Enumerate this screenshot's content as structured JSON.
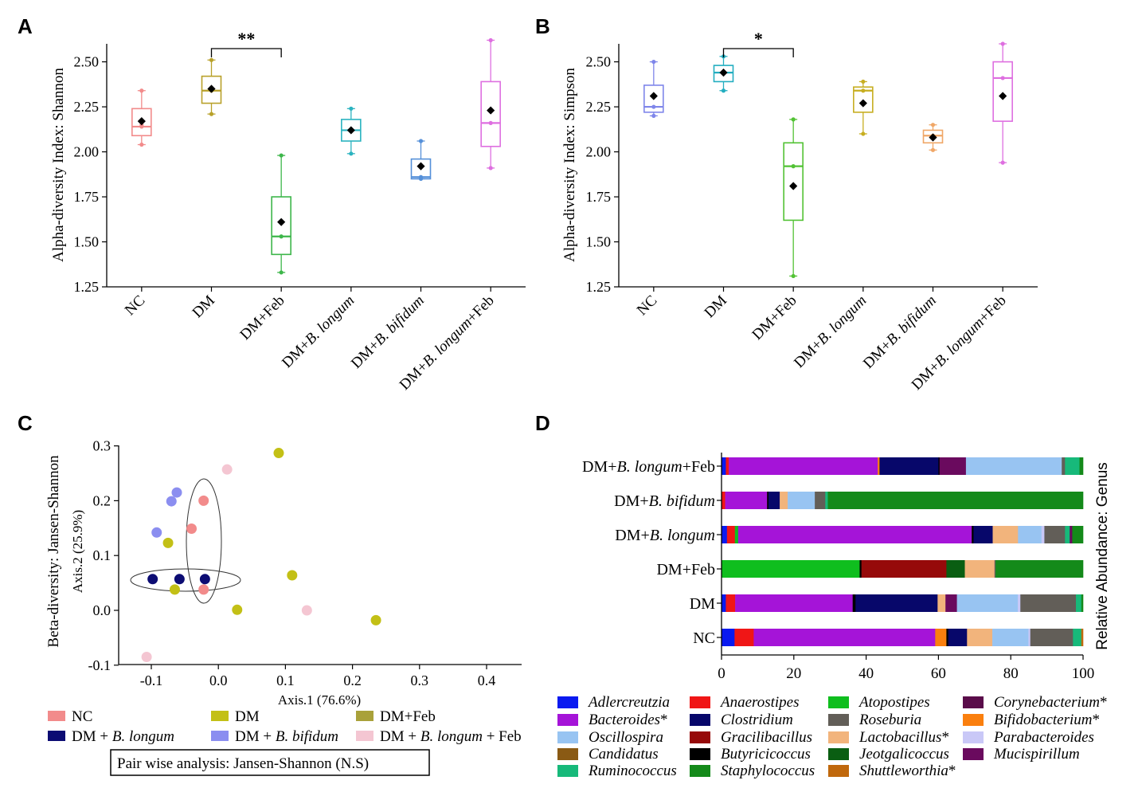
{
  "chart_data": [
    {
      "panel": "A",
      "type": "box",
      "ylabel": "Alpha-diversity Index: Shannon",
      "ylim": [
        1.25,
        2.6
      ],
      "yticks": [
        "1.25",
        "1.50",
        "1.75",
        "2.00",
        "2.25",
        "2.50"
      ],
      "significance": {
        "from": "DM",
        "to": "DM+Feb",
        "label": "**"
      },
      "groups": [
        {
          "name": "NC",
          "name_parts": [
            "NC"
          ],
          "color": "#f28b8b",
          "q1": 2.09,
          "median": 2.14,
          "q3": 2.24,
          "min": 2.04,
          "max": 2.34,
          "mean": 2.17,
          "points": [
            2.04,
            2.14,
            2.15,
            2.34
          ]
        },
        {
          "name": "DM",
          "name_parts": [
            "DM"
          ],
          "color": "#b8a12a",
          "q1": 2.27,
          "median": 2.34,
          "q3": 2.42,
          "min": 2.21,
          "max": 2.51,
          "mean": 2.35,
          "points": [
            2.21,
            2.34,
            2.51
          ]
        },
        {
          "name": "DM+Feb",
          "name_parts": [
            "DM+Feb"
          ],
          "color": "#3db64a",
          "q1": 1.43,
          "median": 1.53,
          "q3": 1.75,
          "min": 1.33,
          "max": 1.98,
          "mean": 1.61,
          "points": [
            1.33,
            1.53,
            1.98
          ]
        },
        {
          "name": "DM+B. longum",
          "name_parts": [
            "DM+",
            "B. longum"
          ],
          "color": "#2bb3c0",
          "q1": 2.06,
          "median": 2.12,
          "q3": 2.18,
          "min": 1.99,
          "max": 2.24,
          "mean": 2.12,
          "points": [
            1.99,
            2.12,
            2.24
          ]
        },
        {
          "name": "DM+B. bifidum",
          "name_parts": [
            "DM+",
            "B. bifidum"
          ],
          "color": "#5590d9",
          "q1": 1.85,
          "median": 1.86,
          "q3": 1.96,
          "min": 1.85,
          "max": 2.06,
          "mean": 1.92,
          "points": [
            1.85,
            1.86,
            2.06
          ]
        },
        {
          "name": "DM+B. longum+Feb",
          "name_parts": [
            "DM+",
            "B. longum",
            "+Feb"
          ],
          "color": "#de6fe0",
          "q1": 2.03,
          "median": 2.16,
          "q3": 2.39,
          "min": 1.91,
          "max": 2.62,
          "mean": 2.23,
          "points": [
            1.91,
            2.16,
            2.62
          ]
        }
      ]
    },
    {
      "panel": "B",
      "type": "box",
      "ylabel": "Alpha-diversity Index: Simpson",
      "ylim": [
        1.25,
        2.6
      ],
      "yticks": [
        "1.25",
        "1.50",
        "1.75",
        "2.00",
        "2.25",
        "2.50"
      ],
      "significance": {
        "from": "DM",
        "to": "DM+Feb",
        "label": "*"
      },
      "groups": [
        {
          "name": "NC",
          "name_parts": [
            "NC"
          ],
          "color": "#7f86ea",
          "q1": 2.22,
          "median": 2.25,
          "q3": 2.37,
          "min": 2.2,
          "max": 2.5,
          "mean": 2.31,
          "points": [
            2.2,
            2.25,
            2.5
          ]
        },
        {
          "name": "DM",
          "name_parts": [
            "DM"
          ],
          "color": "#23aec0",
          "q1": 2.39,
          "median": 2.44,
          "q3": 2.48,
          "min": 2.34,
          "max": 2.53,
          "mean": 2.44,
          "points": [
            2.34,
            2.44,
            2.53
          ]
        },
        {
          "name": "DM+Feb",
          "name_parts": [
            "DM+Feb"
          ],
          "color": "#52c234",
          "q1": 1.62,
          "median": 1.92,
          "q3": 2.05,
          "min": 1.31,
          "max": 2.18,
          "mean": 1.81,
          "points": [
            1.31,
            1.92,
            2.18
          ]
        },
        {
          "name": "DM+B. longum",
          "name_parts": [
            "DM+",
            "B. longum"
          ],
          "color": "#c7ae21",
          "q1": 2.22,
          "median": 2.34,
          "q3": 2.36,
          "min": 2.1,
          "max": 2.39,
          "mean": 2.27,
          "points": [
            2.1,
            2.34,
            2.39
          ]
        },
        {
          "name": "DM+B. bifidum",
          "name_parts": [
            "DM+",
            "B. bifidum"
          ],
          "color": "#f0a767",
          "q1": 2.05,
          "median": 2.09,
          "q3": 2.12,
          "min": 2.01,
          "max": 2.15,
          "mean": 2.08,
          "points": [
            2.01,
            2.09,
            2.15
          ]
        },
        {
          "name": "DM+B. longum+Feb",
          "name_parts": [
            "DM+",
            "B. longum",
            "+Feb"
          ],
          "color": "#de6fe0",
          "q1": 2.17,
          "median": 2.41,
          "q3": 2.5,
          "min": 1.94,
          "max": 2.6,
          "mean": 2.31,
          "points": [
            1.94,
            2.41,
            2.6
          ]
        }
      ]
    },
    {
      "panel": "C",
      "type": "scatter",
      "ylabel_outer": "Beta-diversity: Jansen-Shannon",
      "xlabel": "Axis.1 (76.6%)",
      "ylabel": "Axis.2 (25.9%)",
      "xlim": [
        -0.15,
        0.45
      ],
      "ylim": [
        -0.1,
        0.3
      ],
      "xticks": [
        "-0.1",
        "0.0",
        "0.1",
        "0.2",
        "0.3",
        "0.4"
      ],
      "yticks": [
        "-0.1",
        "0.0",
        "0.1",
        "0.2",
        "0.3"
      ],
      "series": [
        {
          "name": "NC",
          "color": "#f28b8b",
          "points": [
            [
              -0.022,
              0.2
            ],
            [
              -0.04,
              0.149
            ],
            [
              -0.022,
              0.038
            ]
          ]
        },
        {
          "name": "DM",
          "color": "#c3c016",
          "points": [
            [
              0.028,
              0.001
            ],
            [
              0.11,
              0.064
            ],
            [
              0.235,
              -0.018
            ]
          ]
        },
        {
          "name": "DM+Feb",
          "color": "#c3c016",
          "points": [
            [
              0.09,
              0.287
            ],
            [
              -0.075,
              0.123
            ],
            [
              -0.065,
              0.038
            ]
          ]
        },
        {
          "name": "DM + B. longum",
          "color": "#0c0c73",
          "points": [
            [
              -0.098,
              0.057
            ],
            [
              -0.058,
              0.057
            ],
            [
              -0.02,
              0.057
            ]
          ]
        },
        {
          "name": "DM + B. bifidum",
          "color": "#8b8ef0",
          "points": [
            [
              -0.062,
              0.215
            ],
            [
              -0.07,
              0.199
            ],
            [
              -0.092,
              0.142
            ]
          ]
        },
        {
          "name": "DM + B. longum + Feb",
          "color": "#f4c6d2",
          "points": [
            [
              0.013,
              0.257
            ],
            [
              0.132,
              0.0
            ],
            [
              -0.107,
              -0.085
            ]
          ]
        }
      ],
      "legend": [
        {
          "prefix": "NC",
          "italic": "",
          "suffix": "",
          "color": "#f28b8b"
        },
        {
          "prefix": "DM",
          "italic": "",
          "suffix": "",
          "color": "#c3c016"
        },
        {
          "prefix": "DM+Feb",
          "italic": "",
          "suffix": "",
          "color": "#a9a13a"
        },
        {
          "prefix": "DM + ",
          "italic": "B. longum",
          "suffix": "",
          "color": "#0c0c73"
        },
        {
          "prefix": "DM + ",
          "italic": "B. bifidum",
          "suffix": "",
          "color": "#8b8ef0"
        },
        {
          "prefix": "DM + ",
          "italic": "B. longum",
          "suffix": " + Feb",
          "color": "#f4c6d2"
        }
      ],
      "note": "Pair wise analysis: Jansen-Shannon (N.S)"
    },
    {
      "panel": "D",
      "type": "stacked-bar-horizontal",
      "ylabel_right": "Relative Abundance: Genus",
      "xlim": [
        0,
        100
      ],
      "xticks": [
        "0",
        "20",
        "40",
        "60",
        "80",
        "100"
      ],
      "taxa": [
        {
          "name": "Adlercreutzia",
          "color": "#0a1af0",
          "star": false
        },
        {
          "name": "Anaerostipes",
          "color": "#f01616",
          "star": false
        },
        {
          "name": "Atopostipes",
          "color": "#0fbe1e",
          "star": false
        },
        {
          "name": "Corynebacterium",
          "color": "#5a0c4a",
          "star": true
        },
        {
          "name": "Bacteroides",
          "color": "#a514d8",
          "star": true
        },
        {
          "name": "Clostridium",
          "color": "#07076a",
          "star": false
        },
        {
          "name": "Roseburia",
          "color": "#625e58",
          "star": false
        },
        {
          "name": "Bifidobacterium",
          "color": "#fa7f0e",
          "star": true
        },
        {
          "name": "Oscillospira",
          "color": "#98c4f2",
          "star": false
        },
        {
          "name": "Gracilibacillus",
          "color": "#960a0a",
          "star": false
        },
        {
          "name": "Lactobacillus",
          "color": "#f2b47c",
          "star": true
        },
        {
          "name": "Parabacteroides",
          "color": "#c9c8f7",
          "star": false
        },
        {
          "name": "Candidatus",
          "color": "#8a5a14",
          "star": false
        },
        {
          "name": "Butyricicoccus",
          "color": "#000000",
          "star": false
        },
        {
          "name": "Jeotgalicoccus",
          "color": "#0a5e12",
          "star": false
        },
        {
          "name": "Mucispirillum",
          "color": "#6a0a5e",
          "star": false
        },
        {
          "name": "Ruminococcus",
          "color": "#17b97a",
          "star": false
        },
        {
          "name": "Staphylococcus",
          "color": "#148a1a",
          "star": false
        },
        {
          "name": "Shuttleworthia",
          "color": "#c0680c",
          "star": true
        }
      ],
      "bars": [
        {
          "label_prefix": "DM+",
          "label_italic": "B. longum",
          "label_suffix": "+Feb",
          "segments": [
            [
              "Adlercreutzia",
              1.2
            ],
            [
              "Anaerostipes",
              0.8
            ],
            [
              "Bacteroides",
              41.2
            ],
            [
              "Bifidobacterium",
              0.5
            ],
            [
              "Clostridium",
              16.3
            ],
            [
              "Butyricicoccus",
              0.3
            ],
            [
              "Mucispirillum",
              7.3
            ],
            [
              "Oscillospira",
              26.5
            ],
            [
              "Roseburia",
              0.9
            ],
            [
              "Ruminococcus",
              4.0
            ],
            [
              "Staphylococcus",
              1.0
            ]
          ]
        },
        {
          "label_prefix": "DM+",
          "label_italic": "B. bifidum",
          "label_suffix": "",
          "segments": [
            [
              "Anaerostipes",
              1.0
            ],
            [
              "Bacteroides",
              11.6
            ],
            [
              "Butyricicoccus",
              0.4
            ],
            [
              "Clostridium",
              3.1
            ],
            [
              "Lactobacillus",
              2.2
            ],
            [
              "Oscillospira",
              7.5
            ],
            [
              "Roseburia",
              2.9
            ],
            [
              "Ruminococcus",
              0.7
            ],
            [
              "Staphylococcus",
              70.6
            ]
          ]
        },
        {
          "label_prefix": "DM+",
          "label_italic": "B. longum",
          "label_suffix": "",
          "segments": [
            [
              "Adlercreutzia",
              1.5
            ],
            [
              "Anaerostipes",
              2.2
            ],
            [
              "Atopostipes",
              0.9
            ],
            [
              "Bacteroides",
              64.6
            ],
            [
              "Butyricicoccus",
              0.5
            ],
            [
              "Clostridium",
              5.3
            ],
            [
              "Lactobacillus",
              7.0
            ],
            [
              "Oscillospira",
              6.5
            ],
            [
              "Parabacteroides",
              0.8
            ],
            [
              "Roseburia",
              5.7
            ],
            [
              "Ruminococcus",
              1.3
            ],
            [
              "Mucispirillum",
              0.7
            ],
            [
              "Staphylococcus",
              3.0
            ]
          ]
        },
        {
          "label_prefix": "DM+Feb",
          "label_italic": "",
          "label_suffix": "",
          "segments": [
            [
              "Atopostipes",
              38.2
            ],
            [
              "Butyricicoccus",
              0.5
            ],
            [
              "Gracilibacillus",
              23.5
            ],
            [
              "Jeotgalicoccus",
              5.1
            ],
            [
              "Lactobacillus",
              8.2
            ],
            [
              "Roseburia",
              0.3
            ],
            [
              "Staphylococcus",
              24.2
            ]
          ]
        },
        {
          "label_prefix": "DM",
          "label_italic": "",
          "label_suffix": "",
          "segments": [
            [
              "Adlercreutzia",
              1.2
            ],
            [
              "Anaerostipes",
              2.6
            ],
            [
              "Bacteroides",
              32.8
            ],
            [
              "Butyricicoccus",
              0.8
            ],
            [
              "Clostridium",
              22.9
            ],
            [
              "Lactobacillus",
              2.2
            ],
            [
              "Mucispirillum",
              3.2
            ],
            [
              "Oscillospira",
              17.0
            ],
            [
              "Parabacteroides",
              0.7
            ],
            [
              "Roseburia",
              15.5
            ],
            [
              "Ruminococcus",
              1.5
            ],
            [
              "Staphylococcus",
              0.5
            ]
          ]
        },
        {
          "label_prefix": "NC",
          "label_italic": "",
          "label_suffix": "",
          "segments": [
            [
              "Adlercreutzia",
              3.6
            ],
            [
              "Anaerostipes",
              5.3
            ],
            [
              "Bacteroides",
              50.2
            ],
            [
              "Bifidobacterium",
              3.1
            ],
            [
              "Butyricicoccus",
              0.5
            ],
            [
              "Clostridium",
              5.2
            ],
            [
              "Lactobacillus",
              7.0
            ],
            [
              "Oscillospira",
              10.0
            ],
            [
              "Parabacteroides",
              0.5
            ],
            [
              "Roseburia",
              11.8
            ],
            [
              "Ruminococcus",
              2.3
            ],
            [
              "Shuttleworthia",
              0.5
            ]
          ]
        }
      ]
    }
  ]
}
